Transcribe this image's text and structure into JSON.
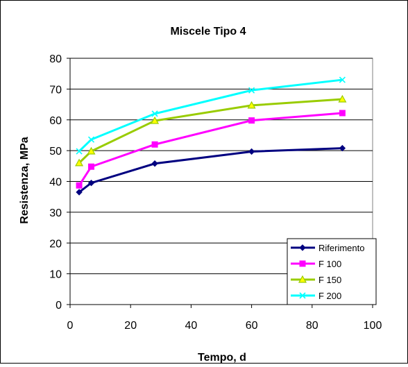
{
  "chart_data": {
    "type": "line",
    "title": "Miscele Tipo 4",
    "xlabel": "Tempo, d",
    "ylabel": "Resistenza, MPa",
    "xlim": [
      0,
      100
    ],
    "ylim": [
      0,
      80
    ],
    "xticks": [
      0,
      20,
      40,
      60,
      80,
      100
    ],
    "yticks": [
      0,
      10,
      20,
      30,
      40,
      50,
      60,
      70,
      80
    ],
    "grid": "horizontal",
    "legend_position": "bottom-right",
    "x": [
      3,
      7,
      28,
      60,
      90
    ],
    "series": [
      {
        "name": "Riferimento",
        "values": [
          36.5,
          39.5,
          45.8,
          49.7,
          50.8
        ],
        "color": "#000080",
        "marker": "diamond"
      },
      {
        "name": "F 100",
        "values": [
          38.7,
          44.8,
          52.0,
          59.8,
          62.2
        ],
        "color": "#ff00ff",
        "marker": "square"
      },
      {
        "name": "F 150",
        "values": [
          46.0,
          49.8,
          59.7,
          64.7,
          66.7
        ],
        "color": "#99cc00",
        "marker": "triangle"
      },
      {
        "name": "F 200",
        "values": [
          49.8,
          53.6,
          62.0,
          69.6,
          73.0
        ],
        "color": "#00ffff",
        "marker": "x"
      }
    ]
  }
}
